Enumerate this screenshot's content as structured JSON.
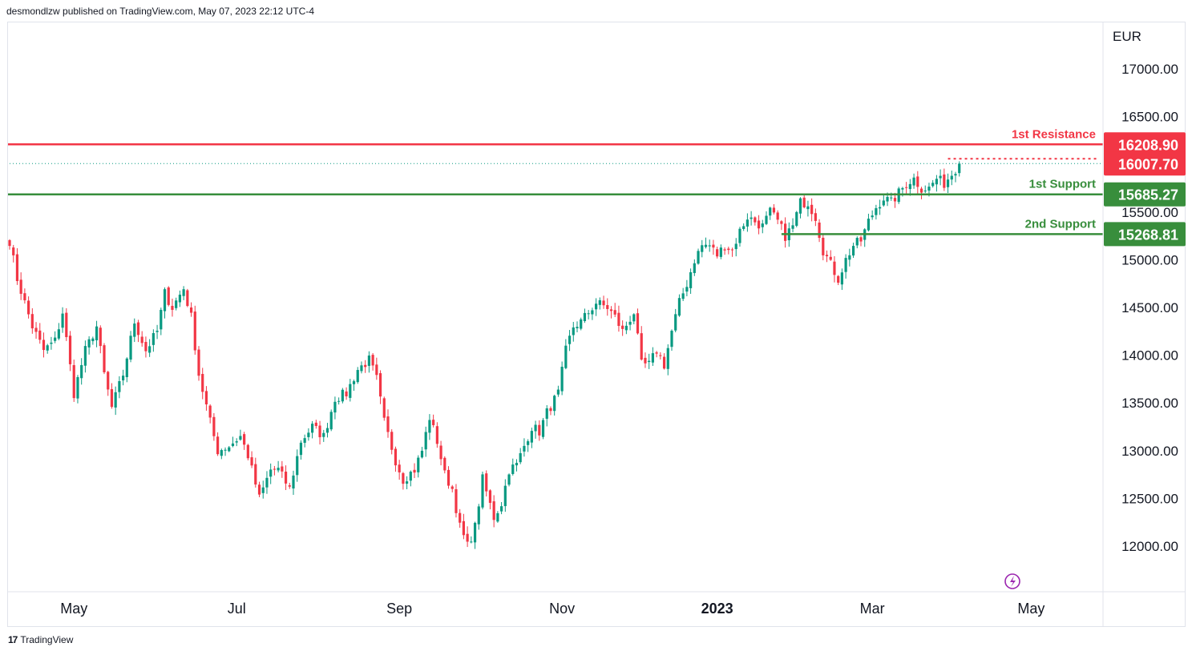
{
  "header": {
    "text": "desmondlzw published on TradingView.com, May 07, 2023 22:12 UTC-4"
  },
  "footer": {
    "logo": "17",
    "brand": "TradingView"
  },
  "chart_data": {
    "type": "candlestick",
    "currency": "EUR",
    "ylim": [
      11700,
      17300
    ],
    "price_ticks": [
      {
        "value": 17000,
        "label": "17000.00"
      },
      {
        "value": 16500,
        "label": "16500.00"
      },
      {
        "value": 15500,
        "label": "15500.00"
      },
      {
        "value": 15000,
        "label": "15000.00"
      },
      {
        "value": 14500,
        "label": "14500.00"
      },
      {
        "value": 14000,
        "label": "14000.00"
      },
      {
        "value": 13500,
        "label": "13500.00"
      },
      {
        "value": 13000,
        "label": "13000.00"
      },
      {
        "value": 12500,
        "label": "12500.00"
      },
      {
        "value": 12000,
        "label": "12000.00"
      }
    ],
    "time_ticks": [
      {
        "label": "May",
        "index": 17,
        "bold": false
      },
      {
        "label": "Jul",
        "index": 60,
        "bold": false
      },
      {
        "label": "Sep",
        "index": 103,
        "bold": false
      },
      {
        "label": "Nov",
        "index": 146,
        "bold": false
      },
      {
        "label": "2023",
        "index": 187,
        "bold": true
      },
      {
        "label": "Mar",
        "index": 228,
        "bold": false
      },
      {
        "label": "May",
        "index": 270,
        "bold": false
      }
    ],
    "levels": [
      {
        "name": "1st Resistance",
        "value": 16208.9,
        "label": "16208.90",
        "color": "#f23645",
        "style": "solid"
      },
      {
        "name": "1st Support",
        "value": 15685.27,
        "label": "15685.27",
        "color": "#388e3c",
        "style": "solid"
      },
      {
        "name": "2nd Support",
        "value": 15268.81,
        "label": "15268.81",
        "color": "#388e3c",
        "style": "solid",
        "start_index": 204
      }
    ],
    "last_price": {
      "value": 16007.7,
      "label": "16007.70",
      "color": "#f23645"
    },
    "colors": {
      "up": "#089981",
      "down": "#f23645",
      "bg": "#ffffff",
      "axis_line": "#e0e3eb"
    },
    "anchors": [
      [
        0,
        15200
      ],
      [
        2,
        14800
      ],
      [
        4,
        14550
      ],
      [
        6,
        14300
      ],
      [
        9,
        14050
      ],
      [
        12,
        14150
      ],
      [
        14,
        14450
      ],
      [
        17,
        13600
      ],
      [
        20,
        14050
      ],
      [
        23,
        14300
      ],
      [
        25,
        13800
      ],
      [
        27,
        13450
      ],
      [
        30,
        13800
      ],
      [
        33,
        14350
      ],
      [
        36,
        14050
      ],
      [
        39,
        14250
      ],
      [
        41,
        14650
      ],
      [
        43,
        14500
      ],
      [
        46,
        14700
      ],
      [
        48,
        14400
      ],
      [
        50,
        13800
      ],
      [
        53,
        13300
      ],
      [
        55,
        13000
      ],
      [
        58,
        13050
      ],
      [
        61,
        13150
      ],
      [
        63,
        12950
      ],
      [
        66,
        12500
      ],
      [
        69,
        12800
      ],
      [
        71,
        12800
      ],
      [
        74,
        12600
      ],
      [
        77,
        13100
      ],
      [
        80,
        13250
      ],
      [
        83,
        13150
      ],
      [
        86,
        13550
      ],
      [
        89,
        13600
      ],
      [
        92,
        13850
      ],
      [
        95,
        13950
      ],
      [
        97,
        13750
      ],
      [
        99,
        13300
      ],
      [
        102,
        12900
      ],
      [
        104,
        12700
      ],
      [
        107,
        12800
      ],
      [
        109,
        13000
      ],
      [
        111,
        13350
      ],
      [
        113,
        13100
      ],
      [
        115,
        12750
      ],
      [
        117,
        12600
      ],
      [
        119,
        12200
      ],
      [
        121,
        12000
      ],
      [
        123,
        12200
      ],
      [
        125,
        12700
      ],
      [
        128,
        12300
      ],
      [
        130,
        12450
      ],
      [
        132,
        12800
      ],
      [
        134,
        12850
      ],
      [
        136,
        13050
      ],
      [
        138,
        13250
      ],
      [
        140,
        13200
      ],
      [
        142,
        13400
      ],
      [
        145,
        13600
      ],
      [
        147,
        14050
      ],
      [
        149,
        14300
      ],
      [
        151,
        14350
      ],
      [
        153,
        14450
      ],
      [
        155,
        14550
      ],
      [
        158,
        14500
      ],
      [
        160,
        14400
      ],
      [
        162,
        14250
      ],
      [
        165,
        14450
      ],
      [
        167,
        13900
      ],
      [
        169,
        13900
      ],
      [
        171,
        14050
      ],
      [
        173,
        13900
      ],
      [
        175,
        14250
      ],
      [
        177,
        14550
      ],
      [
        179,
        14750
      ],
      [
        181,
        15000
      ],
      [
        183,
        15150
      ],
      [
        185,
        15150
      ],
      [
        187,
        15050
      ],
      [
        189,
        15150
      ],
      [
        191,
        15100
      ],
      [
        193,
        15300
      ],
      [
        195,
        15450
      ],
      [
        197,
        15400
      ],
      [
        199,
        15350
      ],
      [
        201,
        15500
      ],
      [
        203,
        15400
      ],
      [
        205,
        15250
      ],
      [
        207,
        15350
      ],
      [
        209,
        15600
      ],
      [
        211,
        15600
      ],
      [
        213,
        15450
      ],
      [
        215,
        15100
      ],
      [
        217,
        14950
      ],
      [
        219,
        14800
      ],
      [
        221,
        15000
      ],
      [
        223,
        15150
      ],
      [
        225,
        15200
      ],
      [
        227,
        15400
      ],
      [
        229,
        15550
      ],
      [
        231,
        15650
      ],
      [
        233,
        15600
      ],
      [
        235,
        15700
      ],
      [
        237,
        15800
      ],
      [
        239,
        15850
      ],
      [
        241,
        15750
      ],
      [
        243,
        15750
      ],
      [
        245,
        15850
      ],
      [
        247,
        15800
      ],
      [
        249,
        15900
      ],
      [
        251,
        16007
      ]
    ]
  }
}
